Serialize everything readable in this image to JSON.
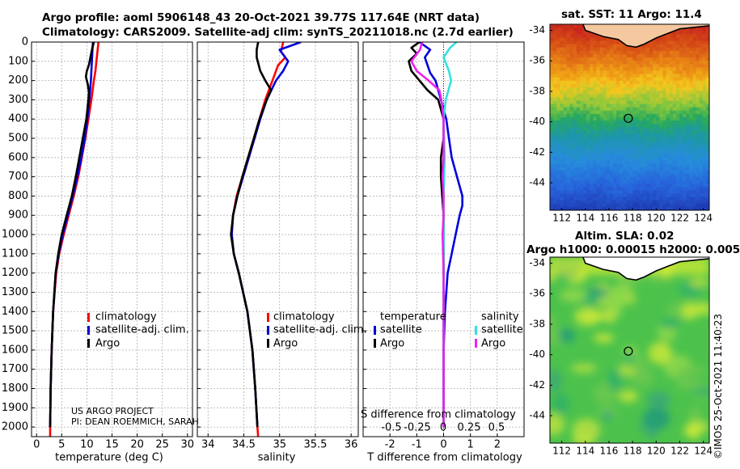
{
  "header": {
    "title_line1": "Argo profile: aoml 5906148_43 20-Oct-2021 39.77S 117.64E (NRT data)",
    "title_line2": "Climatology: CARS2009. Satellite-adj clim: synTS_20211018.nc (2.7d earlier)"
  },
  "map_titles": {
    "sst": "sat. SST: 11 Argo: 11.4",
    "sla": "Altim. SLA: 0.02",
    "height": "Argo h1000: 0.00015 h2000: 0.005"
  },
  "credit": {
    "project": "US ARGO PROJECT",
    "pi": "PI: DEAN ROEMMICH, SARAH"
  },
  "watermark": "©IMOS 25-Oct-2021 11:40:23",
  "colors": {
    "climatology": "#ff0000",
    "satellite": "#0000dd",
    "argo": "#000000",
    "sal_satellite": "#33e0e0",
    "sal_argo": "#ee22ee",
    "land": "#f6c8a0",
    "grid": "#b0b0b0"
  },
  "chart_data": [
    {
      "type": "line",
      "panel": "temperature",
      "xlabel": "temperature (deg C)",
      "ylabel": "",
      "xlim": [
        -1,
        31
      ],
      "ylim": [
        2050,
        0
      ],
      "xticks": [
        "0",
        "5",
        "10",
        "15",
        "20",
        "25",
        "30"
      ],
      "yticks": [
        "0",
        "100",
        "200",
        "300",
        "400",
        "500",
        "600",
        "700",
        "800",
        "900",
        "1000",
        "1100",
        "1200",
        "1300",
        "1400",
        "1500",
        "1600",
        "1700",
        "1800",
        "1900",
        "2000"
      ],
      "legend": [
        "climatology",
        "satellite-adj. clim.",
        "Argo"
      ],
      "series": [
        {
          "name": "climatology",
          "depth": [
            0,
            50,
            100,
            150,
            200,
            300,
            400,
            500,
            600,
            700,
            800,
            900,
            1000,
            1100,
            1200,
            1400,
            1600,
            1800,
            2000,
            2050
          ],
          "values": [
            12.3,
            12.1,
            11.9,
            11.7,
            11.4,
            10.9,
            10.3,
            9.7,
            9.0,
            8.3,
            7.4,
            6.4,
            5.4,
            4.5,
            3.9,
            3.3,
            3.0,
            2.8,
            2.7,
            2.7
          ]
        },
        {
          "name": "satellite-adj. clim.",
          "depth": [
            0,
            50,
            100,
            150,
            200,
            300,
            400,
            500,
            600,
            700,
            800,
            900,
            1000,
            1100,
            1200,
            1400,
            1600,
            1800,
            2000
          ],
          "values": [
            11.2,
            11.1,
            11.0,
            10.9,
            10.8,
            10.5,
            10.1,
            9.6,
            8.9,
            8.1,
            7.2,
            6.2,
            5.2,
            4.4,
            3.8,
            3.3,
            3.0,
            2.8,
            2.7
          ]
        },
        {
          "name": "Argo",
          "depth": [
            0,
            30,
            80,
            120,
            150,
            180,
            220,
            260,
            300,
            400,
            500,
            600,
            700,
            800,
            900,
            1000,
            1100,
            1200,
            1400,
            1600,
            1800,
            2000
          ],
          "values": [
            11.4,
            11.1,
            10.7,
            10.4,
            10.0,
            9.8,
            10.2,
            10.4,
            10.3,
            9.9,
            9.2,
            8.5,
            7.8,
            7.0,
            6.0,
            5.0,
            4.3,
            3.8,
            3.3,
            3.0,
            2.8,
            2.7
          ]
        }
      ]
    },
    {
      "type": "line",
      "panel": "salinity",
      "xlabel": "salinity",
      "ylabel": "",
      "xlim": [
        33.85,
        36.1
      ],
      "ylim": [
        2050,
        0
      ],
      "xticks": [
        "34",
        "34.5",
        "35",
        "35.5",
        "36"
      ],
      "legend": [
        "climatology",
        "satellite-adj. clim.",
        "Argo"
      ],
      "series": [
        {
          "name": "climatology",
          "depth": [
            0,
            50,
            80,
            120,
            200,
            300,
            400,
            500,
            600,
            700,
            800,
            900,
            1000,
            1100,
            1200,
            1400,
            1600,
            1800,
            2000,
            2050
          ],
          "values": [
            35.05,
            35.02,
            35.08,
            34.98,
            34.9,
            34.8,
            34.72,
            34.64,
            34.56,
            34.48,
            34.4,
            34.35,
            34.33,
            34.36,
            34.43,
            34.55,
            34.62,
            34.66,
            34.69,
            34.7
          ]
        },
        {
          "name": "satellite-adj. clim.",
          "depth": [
            0,
            40,
            100,
            150,
            200,
            300,
            400,
            500,
            600,
            700,
            800,
            900,
            1000,
            1100,
            1200,
            1400,
            1600,
            1800,
            2000
          ],
          "values": [
            35.3,
            35.0,
            35.12,
            35.05,
            34.95,
            34.82,
            34.73,
            34.65,
            34.57,
            34.49,
            34.41,
            34.35,
            34.33,
            34.36,
            34.43,
            34.55,
            34.62,
            34.66,
            34.69
          ]
        },
        {
          "name": "Argo",
          "depth": [
            0,
            40,
            80,
            150,
            200,
            250,
            300,
            350,
            400,
            500,
            600,
            700,
            800,
            900,
            1000,
            1100,
            1200,
            1400,
            1600,
            1800,
            2000
          ],
          "values": [
            34.7,
            34.68,
            34.68,
            34.73,
            34.8,
            34.88,
            34.82,
            34.77,
            34.72,
            34.64,
            34.56,
            34.48,
            34.41,
            34.35,
            34.32,
            34.36,
            34.43,
            34.55,
            34.62,
            34.66,
            34.69
          ]
        }
      ]
    },
    {
      "type": "line",
      "panel": "difference",
      "xlabel": "T difference from climatology",
      "xlabel_top": "S difference from climatology",
      "xlim": [
        -3,
        3
      ],
      "ylim": [
        2050,
        0
      ],
      "xticks": [
        "-2",
        "-1",
        "0",
        "1",
        "2"
      ],
      "xticks_salinity": [
        "-0.5",
        "-0.25",
        "0",
        "0.25",
        "0.5"
      ],
      "legend_headers": [
        "temperature",
        "salinity"
      ],
      "legend": [
        "satellite",
        "Argo",
        "satellite",
        "Argo"
      ],
      "series": [
        {
          "name": "temperature satellite",
          "depth": [
            0,
            40,
            80,
            120,
            160,
            200,
            300,
            400,
            500,
            600,
            700,
            800,
            850,
            900,
            1000,
            1100,
            1200,
            1400,
            1600,
            1800,
            2000
          ],
          "values": [
            -0.9,
            -0.5,
            -0.7,
            -0.6,
            -0.5,
            -0.3,
            -0.1,
            0.1,
            0.2,
            0.3,
            0.5,
            0.7,
            0.7,
            0.6,
            0.45,
            0.3,
            0.15,
            0.05,
            0.0,
            0.0,
            0.0
          ]
        },
        {
          "name": "temperature Argo",
          "depth": [
            0,
            30,
            60,
            100,
            150,
            200,
            250,
            300,
            400,
            500,
            600,
            700,
            800,
            900,
            1000,
            1200,
            1400,
            1600,
            1800,
            2000
          ],
          "values": [
            -0.9,
            -1.2,
            -1.0,
            -1.3,
            -1.2,
            -0.9,
            -0.6,
            -0.2,
            0.0,
            0.0,
            -0.1,
            -0.1,
            -0.05,
            0.0,
            0.0,
            0.0,
            0.0,
            0.0,
            0.0,
            0.0
          ]
        },
        {
          "name": "salinity satellite",
          "depth": [
            0,
            30,
            80,
            150,
            200,
            300,
            400,
            600,
            800,
            1000,
            1200,
            1400,
            1600,
            1800,
            2000
          ],
          "values": [
            0.12,
            0.06,
            0.0,
            0.05,
            0.07,
            0.02,
            0.0,
            0.01,
            0.0,
            0.0,
            0.0,
            0.0,
            0.0,
            0.0,
            0.0
          ]
        },
        {
          "name": "salinity Argo",
          "depth": [
            0,
            40,
            100,
            150,
            200,
            250,
            300,
            400,
            500,
            600,
            700,
            800,
            900,
            1000,
            1200,
            1400,
            1600,
            1800,
            2000
          ],
          "values": [
            -0.2,
            -0.22,
            -0.3,
            -0.25,
            -0.14,
            -0.04,
            -0.02,
            0.0,
            0.0,
            0.0,
            -0.01,
            0.0,
            0.0,
            -0.01,
            0.0,
            0.0,
            0.0,
            0.0,
            0.0
          ]
        }
      ]
    },
    {
      "type": "heatmap",
      "panel": "sst_map",
      "title": "sat. SST: 11 Argo: 11.4",
      "xlim": [
        111,
        124.5
      ],
      "ylim": [
        -45.8,
        -33.6
      ],
      "xticks": [
        "112",
        "114",
        "116",
        "118",
        "120",
        "122",
        "124"
      ],
      "yticks": [
        "-34",
        "-36",
        "-38",
        "-40",
        "-42",
        "-44"
      ],
      "profile_location": {
        "lon": 117.64,
        "lat": -39.77
      }
    },
    {
      "type": "heatmap",
      "panel": "sla_map",
      "title": "Altim. SLA: 0.02",
      "xlim": [
        111,
        124.5
      ],
      "ylim": [
        -45.8,
        -33.6
      ],
      "xticks": [
        "112",
        "114",
        "116",
        "118",
        "120",
        "122",
        "124"
      ],
      "yticks": [
        "-34",
        "-36",
        "-38",
        "-40",
        "-42",
        "-44"
      ],
      "profile_location": {
        "lon": 117.64,
        "lat": -39.77
      }
    }
  ]
}
